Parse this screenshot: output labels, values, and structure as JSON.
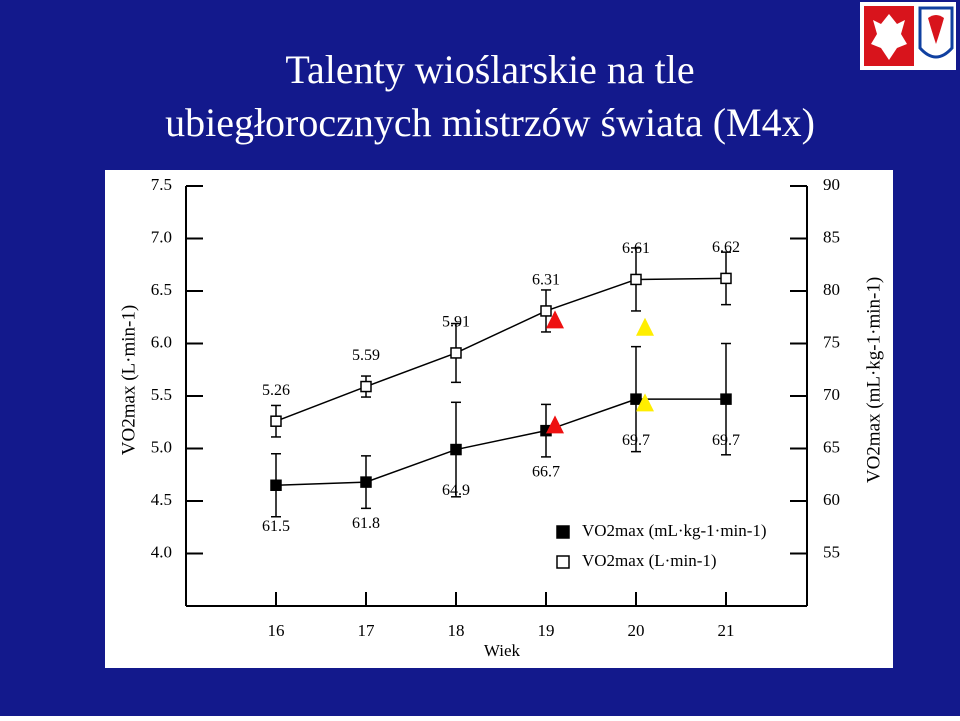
{
  "slide": {
    "title_lines": [
      "Talenty wioślarskie na tle",
      "ubiegłorocznych mistrzów świata (M4x)"
    ]
  },
  "chart_data": {
    "type": "line",
    "x_label": "Wiek",
    "y_label": "VO2max (L·min-1)",
    "y2_label": "VO2max (mL·kg-1·min-1)",
    "x": [
      16,
      17,
      18,
      19,
      20,
      21
    ],
    "xlim": [
      15,
      21.9
    ],
    "xticks": [
      16,
      17,
      18,
      19,
      20,
      21
    ],
    "ylim": [
      3.5,
      7.5
    ],
    "yticks": [
      {
        "value": 4,
        "label": "4.0"
      },
      {
        "value": 4.5,
        "label": "4.5"
      },
      {
        "value": 5,
        "label": "5.0"
      },
      {
        "value": 5.5,
        "label": "5.5"
      },
      {
        "value": 6,
        "label": "6.0"
      },
      {
        "value": 6.5,
        "label": "6.5"
      },
      {
        "value": 7,
        "label": "7.0"
      },
      {
        "value": 7.5,
        "label": "7.5"
      }
    ],
    "y2lim": [
      50,
      90
    ],
    "y2ticks": [
      55,
      60,
      65,
      70,
      75,
      80,
      85,
      90
    ],
    "grid": false,
    "legend": "lower right",
    "series": [
      {
        "name": "VO2max (mL·kg-1·min-1)",
        "color": "#000000",
        "marker": "filled-square",
        "axis": "y2",
        "values": [
          61.5,
          61.8,
          64.9,
          66.7,
          69.7,
          69.7
        ],
        "errors": [
          3,
          2.5,
          4.5,
          2.5,
          5,
          5.3
        ]
      },
      {
        "name": "VO2max (L·min-1)",
        "color": "#000000",
        "marker": "open-square",
        "values": [
          5.26,
          5.59,
          5.91,
          6.31,
          6.61,
          6.62
        ],
        "errors": [
          0.15,
          0.1,
          0.28,
          0.2,
          0.3,
          0.25
        ]
      }
    ],
    "markers": [
      {
        "color": "#ee1111",
        "x": [
          19.1,
          19.1
        ],
        "values": [
          6.22,
          5.22
        ]
      },
      {
        "color": "#ffee00",
        "x": [
          20.1,
          20.1
        ],
        "values": [
          6.15,
          5.43
        ]
      }
    ]
  }
}
